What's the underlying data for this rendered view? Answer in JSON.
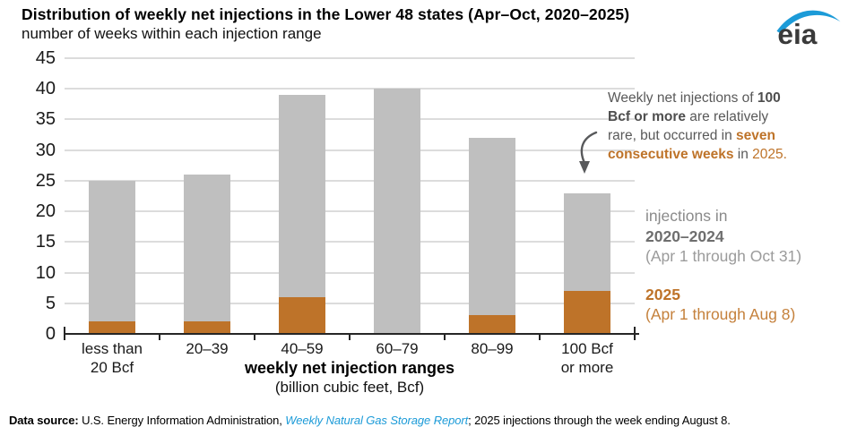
{
  "header": {
    "title": "Distribution of weekly net injections in the Lower 48 states (Apr–Oct, 2020–2025)",
    "subtitle": "number of weeks within each injection range",
    "logo_text": "eia"
  },
  "chart_data": {
    "type": "bar",
    "stacked": true,
    "title": "Distribution of weekly net injections in the Lower 48 states (Apr–Oct, 2020–2025)",
    "subtitle": "number of weeks within each injection range",
    "categories": [
      "less than\n20 Bcf",
      "20–39",
      "40–59",
      "60–79",
      "80–99",
      "100 Bcf\nor more"
    ],
    "series": [
      {
        "name": "2025 (Apr 1 through Aug 8)",
        "color": "#BE7329",
        "values": [
          2,
          2,
          6,
          0,
          3,
          7
        ]
      },
      {
        "name": "injections in 2020–2024 (Apr 1 through Oct 31)",
        "color": "#BFBFBF",
        "values": [
          23,
          24,
          33,
          40,
          29,
          16
        ]
      }
    ],
    "totals": [
      25,
      26,
      39,
      40,
      32,
      23
    ],
    "ylim": [
      0,
      45
    ],
    "ytick_step": 5,
    "xlabel": "weekly net injection ranges",
    "xlabel_sub": "(billion cubic feet, Bcf)",
    "grid": "horizontal",
    "legend_position": "right"
  },
  "annotation": {
    "lines": [
      [
        {
          "t": "Weekly net injections of ",
          "s": "gray"
        },
        {
          "t": "100",
          "s": "gray_bold"
        }
      ],
      [
        {
          "t": "Bcf or more",
          "s": "gray_bold"
        },
        {
          "t": " are relatively",
          "s": "gray"
        }
      ],
      [
        {
          "t": "rare, but occurred in ",
          "s": "gray"
        },
        {
          "t": "seven",
          "s": "orange_bold"
        }
      ],
      [
        {
          "t": "consecutive weeks",
          "s": "orange_bold"
        },
        {
          "t": " in ",
          "s": "gray"
        },
        {
          "t": "2025.",
          "s": "orange"
        }
      ]
    ]
  },
  "legend": {
    "items": [
      {
        "text": "injections in",
        "style": "gray"
      },
      {
        "text": "2020–2024",
        "style": "gray_bold"
      },
      {
        "text": "(Apr 1 through Oct 31)",
        "style": "gray_light"
      },
      {
        "text": "",
        "style": "spacer"
      },
      {
        "text": "2025",
        "style": "orange_bold"
      },
      {
        "text": "(Apr 1 through Aug 8)",
        "style": "orange_light"
      }
    ]
  },
  "footer": {
    "segments": [
      {
        "t": "Data source: ",
        "s": "bold"
      },
      {
        "t": "U.S. Energy Information Administration, ",
        "s": "normal"
      },
      {
        "t": "Weekly Natural Gas Storage Report",
        "s": "link"
      },
      {
        "t": "; 2025 injections through the week ending August 8.",
        "s": "normal"
      }
    ]
  },
  "colors": {
    "bar_2025": "#BE7329",
    "bar_2020_2024": "#BFBFBF",
    "gridline": "#DCDCDC",
    "axis": "#262626",
    "annotation_gray": "#595959",
    "annotation_orange": "#BE7329",
    "link_blue": "#1C9BD8",
    "logo_blue": "#1C9BD8",
    "logo_text": "#3A3A3A"
  }
}
